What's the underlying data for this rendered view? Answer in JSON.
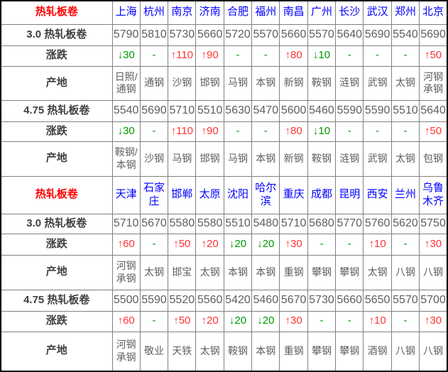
{
  "colors": {
    "section_title": "#ff0000",
    "city": "#0000ff",
    "value": "#5f5f5f",
    "label": "#404040",
    "up": "#ff3333",
    "down": "#009900",
    "grid": "#808080",
    "border": "#000000",
    "background": "#ffffff"
  },
  "table": {
    "sections": [
      {
        "title": "热轧板卷",
        "cities": [
          "上海",
          "杭州",
          "南京",
          "济南",
          "合肥",
          "福州",
          "南昌",
          "广州",
          "长沙",
          "武汉",
          "郑州",
          "北京"
        ],
        "rows": [
          {
            "label": "3.0 热轧板卷",
            "kind": "price",
            "values": [
              "5790",
              "5810",
              "5730",
              "5660",
              "5720",
              "5570",
              "5660",
              "5570",
              "5640",
              "5690",
              "5540",
              "5690"
            ]
          },
          {
            "label": "涨跌",
            "kind": "change",
            "values": [
              "↓30",
              "-",
              "↑110",
              "↑90",
              "-",
              "-",
              "↑80",
              "↓10",
              "-",
              "-",
              "-",
              "↑50"
            ]
          },
          {
            "label": "产地",
            "kind": "origin",
            "values": [
              "日照/通钢",
              "通钢",
              "沙钢",
              "邯钢",
              "马钢",
              "本钢",
              "新钢",
              "鞍钢",
              "涟钢",
              "武钢",
              "太钢",
              "河钢承钢"
            ]
          },
          {
            "label": "4.75 热轧板卷",
            "kind": "price",
            "values": [
              "5540",
              "5690",
              "5710",
              "5510",
              "5630",
              "5470",
              "5600",
              "5460",
              "5590",
              "5590",
              "5510",
              "5640"
            ]
          },
          {
            "label": "涨跌",
            "kind": "change",
            "values": [
              "↓30",
              "-",
              "↑110",
              "↑90",
              "-",
              "-",
              "↑80",
              "↓10",
              "-",
              "-",
              "-",
              "↑50"
            ]
          },
          {
            "label": "产地",
            "kind": "origin",
            "values": [
              "鞍钢/本钢",
              "沙钢",
              "马钢",
              "邯钢",
              "马钢",
              "本钢",
              "新钢",
              "鞍钢",
              "涟钢",
              "武钢",
              "太钢",
              "包钢"
            ]
          }
        ]
      },
      {
        "title": "热轧板卷",
        "cities": [
          "天津",
          "石家庄",
          "邯郸",
          "太原",
          "沈阳",
          "哈尔滨",
          "重庆",
          "成都",
          "昆明",
          "西安",
          "兰州",
          "乌鲁木齐"
        ],
        "rows": [
          {
            "label": "3.0 热轧板卷",
            "kind": "price",
            "values": [
              "5710",
              "5670",
              "5580",
              "5580",
              "5510",
              "5480",
              "5710",
              "5680",
              "5770",
              "5760",
              "5620",
              "5750"
            ]
          },
          {
            "label": "涨跌",
            "kind": "change",
            "values": [
              "↑60",
              "-",
              "↑50",
              "↑20",
              "↓20",
              "↓20",
              "↑30",
              "-",
              "-",
              "↑10",
              "-",
              "↑30"
            ]
          },
          {
            "label": "产地",
            "kind": "origin",
            "values": [
              "河钢承钢",
              "太钢",
              "邯宝",
              "太钢",
              "本钢",
              "本钢",
              "重钢",
              "攀钢",
              "攀钢",
              "太钢",
              "八钢",
              "八钢"
            ]
          },
          {
            "label": "4.75 热轧板卷",
            "kind": "price",
            "values": [
              "5500",
              "5590",
              "5520",
              "5560",
              "5420",
              "5460",
              "5670",
              "5730",
              "5660",
              "5650",
              "5570",
              "5700"
            ]
          },
          {
            "label": "涨跌",
            "kind": "change",
            "values": [
              "↑60",
              "-",
              "↑50",
              "↑20",
              "↓20",
              "↓20",
              "↑30",
              "-",
              "-",
              "↑10",
              "-",
              "↑30"
            ]
          },
          {
            "label": "产地",
            "kind": "origin",
            "values": [
              "河钢承钢",
              "敬业",
              "天铁",
              "太钢",
              "鞍钢",
              "本钢",
              "重钢",
              "攀钢",
              "攀钢",
              "酒钢",
              "八钢",
              "八钢"
            ]
          }
        ]
      }
    ]
  }
}
